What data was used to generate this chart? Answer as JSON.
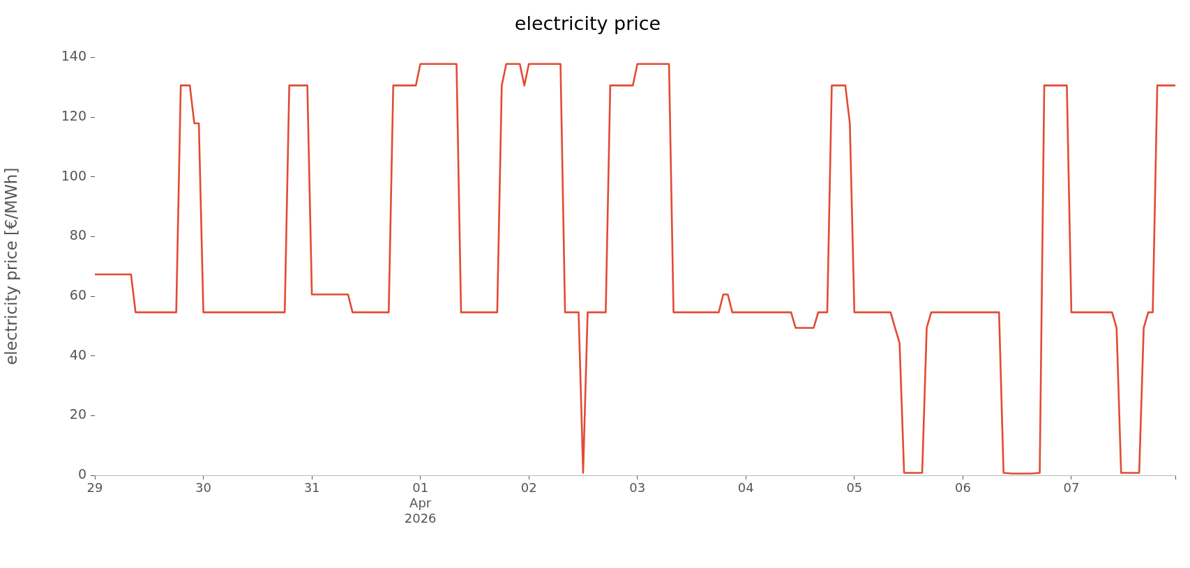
{
  "chart_data": {
    "type": "line",
    "title": "electricity price",
    "ylabel": "electricity price [€/MWh]",
    "x": [
      "2026-03-29T00:00",
      "2026-03-29T08:00",
      "2026-03-29T09:00",
      "2026-03-29T18:00",
      "2026-03-29T19:00",
      "2026-03-29T21:00",
      "2026-03-29T22:00",
      "2026-03-29T23:00",
      "2026-03-30T00:00",
      "2026-03-30T18:00",
      "2026-03-30T19:00",
      "2026-03-30T23:00",
      "2026-03-31T00:00",
      "2026-03-31T08:00",
      "2026-03-31T09:00",
      "2026-03-31T17:00",
      "2026-03-31T18:00",
      "2026-03-31T23:00",
      "2026-04-01T00:00",
      "2026-04-01T08:00",
      "2026-04-01T09:00",
      "2026-04-01T17:00",
      "2026-04-01T18:00",
      "2026-04-01T19:00",
      "2026-04-01T22:00",
      "2026-04-01T23:00",
      "2026-04-02T00:00",
      "2026-04-02T07:00",
      "2026-04-02T08:00",
      "2026-04-02T11:00",
      "2026-04-02T12:00",
      "2026-04-02T13:00",
      "2026-04-02T17:00",
      "2026-04-02T18:00",
      "2026-04-02T23:00",
      "2026-04-03T00:00",
      "2026-04-03T07:00",
      "2026-04-03T08:00",
      "2026-04-03T18:00",
      "2026-04-03T19:00",
      "2026-04-03T20:00",
      "2026-04-03T21:00",
      "2026-04-04T10:00",
      "2026-04-04T11:00",
      "2026-04-04T15:00",
      "2026-04-04T16:00",
      "2026-04-04T18:00",
      "2026-04-04T19:00",
      "2026-04-04T22:00",
      "2026-04-04T23:00",
      "2026-04-05T00:00",
      "2026-04-05T08:00",
      "2026-04-05T10:00",
      "2026-04-05T11:00",
      "2026-04-05T15:00",
      "2026-04-05T16:00",
      "2026-04-05T17:00",
      "2026-04-06T08:00",
      "2026-04-06T09:00",
      "2026-04-06T11:00",
      "2026-04-06T15:00",
      "2026-04-06T17:00",
      "2026-04-06T18:00",
      "2026-04-06T23:00",
      "2026-04-07T00:00",
      "2026-04-07T09:00",
      "2026-04-07T10:00",
      "2026-04-07T11:00",
      "2026-04-07T15:00",
      "2026-04-07T16:00",
      "2026-04-07T17:00",
      "2026-04-07T18:00",
      "2026-04-07T19:00",
      "2026-04-07T23:00"
    ],
    "series": [
      {
        "color": "#e24a33",
        "values": [
          67.3,
          67.3,
          54.6,
          54.6,
          130.6,
          130.6,
          117.9,
          117.9,
          54.6,
          54.6,
          130.6,
          130.6,
          60.6,
          60.6,
          54.6,
          54.6,
          130.6,
          130.6,
          137.8,
          137.8,
          54.6,
          54.6,
          130.6,
          137.8,
          137.8,
          130.6,
          137.8,
          137.8,
          54.6,
          54.6,
          0.8,
          54.6,
          54.6,
          130.6,
          130.6,
          137.8,
          137.8,
          54.6,
          54.6,
          60.6,
          60.6,
          54.6,
          54.6,
          49.4,
          49.4,
          54.6,
          54.6,
          130.6,
          130.6,
          117.9,
          54.6,
          54.6,
          44.3,
          0.8,
          0.8,
          49.4,
          54.6,
          54.6,
          0.8,
          0.6,
          0.6,
          0.8,
          130.6,
          130.6,
          54.6,
          54.6,
          49.4,
          0.8,
          0.8,
          49.4,
          54.6,
          54.6,
          130.6,
          130.6
        ]
      }
    ],
    "xlim": [
      "2026-03-29T00:00",
      "2026-04-07T23:00"
    ],
    "xticks": [
      {
        "value": "2026-03-29",
        "label": "29"
      },
      {
        "value": "2026-03-30",
        "label": "30"
      },
      {
        "value": "2026-03-31",
        "label": "31"
      },
      {
        "value": "2026-04-01",
        "label": "01\nApr\n2026"
      },
      {
        "value": "2026-04-02",
        "label": "02"
      },
      {
        "value": "2026-04-03",
        "label": "03"
      },
      {
        "value": "2026-04-04",
        "label": "04"
      },
      {
        "value": "2026-04-05",
        "label": "05"
      },
      {
        "value": "2026-04-06",
        "label": "06"
      },
      {
        "value": "2026-04-07",
        "label": "07"
      },
      {
        "value": "2026-04-07T23:00",
        "label": null
      }
    ],
    "ylim": [
      0,
      140
    ],
    "yticks": [
      0,
      20,
      40,
      60,
      80,
      100,
      120,
      140
    ],
    "grid": false,
    "legend": false,
    "marker": "none",
    "line_style": "solid"
  }
}
